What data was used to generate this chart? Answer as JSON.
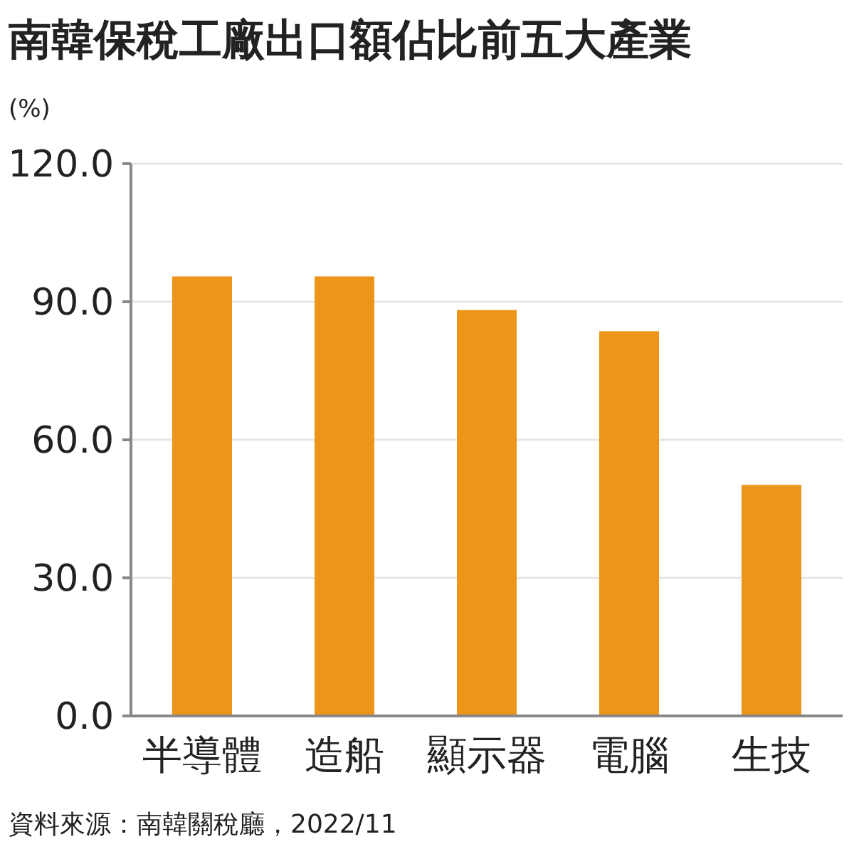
{
  "chart_data": {
    "type": "bar",
    "title": "南韓保稅工廠出口額佔比前五大產業",
    "ylabel": "(%)",
    "categories": [
      "半導體",
      "造船",
      "顯示器",
      "電腦",
      "生技"
    ],
    "values": [
      95.5,
      95.5,
      88.2,
      83.6,
      50.2
    ],
    "color": "#ec951a",
    "ylim": [
      0,
      120
    ],
    "yticks": [
      {
        "value": 0,
        "label": "0.0"
      },
      {
        "value": 30,
        "label": "30.0"
      },
      {
        "value": 60,
        "label": "60.0"
      },
      {
        "value": 90,
        "label": "90.0"
      },
      {
        "value": 120,
        "label": "120.0"
      }
    ],
    "grid": "y",
    "annotations": [
      "資料來源：南韓關稅廳，2022/11"
    ]
  }
}
